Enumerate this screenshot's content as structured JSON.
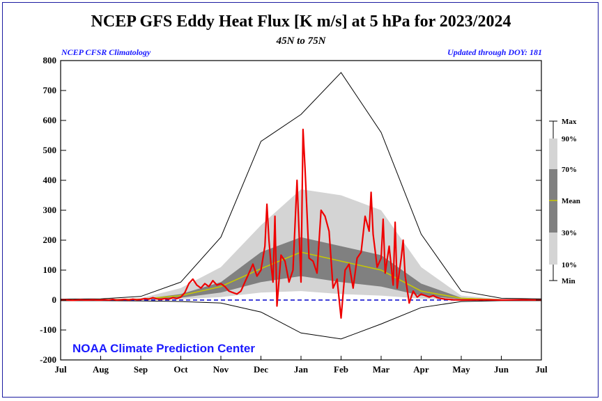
{
  "header": {
    "title": "NCEP GFS Eddy Heat Flux [K m/s] at 5 hPa for 2023/2024",
    "subtitle": "45N to 75N",
    "climatology_label": "NCEP CFSR Climatology",
    "updated_label": "Updated through DOY: 181"
  },
  "credit": "NOAA Climate Prediction Center",
  "legend": {
    "labels": [
      "Max",
      "90%",
      "70%",
      "Mean",
      "30%",
      "10%",
      "Min"
    ]
  },
  "colors": {
    "observed": "#ee0000",
    "mean": "#c8c800",
    "band_10_90": "#d4d4d4",
    "band_30_70": "#808080",
    "extremes": "#000000",
    "zero_line": "#0000cc",
    "text_blue": "#1a1aff"
  },
  "chart_data": {
    "type": "area",
    "x": [
      "Jul",
      "Aug",
      "Sep",
      "Oct",
      "Nov",
      "Dec",
      "Jan",
      "Feb",
      "Mar",
      "Apr",
      "May",
      "Jun",
      "Jul"
    ],
    "ylim": [
      -200,
      800
    ],
    "yticks": [
      -200,
      -100,
      0,
      100,
      200,
      300,
      400,
      500,
      600,
      700,
      800
    ],
    "xticks": [
      "Jul",
      "Aug",
      "Sep",
      "Oct",
      "Nov",
      "Dec",
      "Jan",
      "Feb",
      "Mar",
      "Apr",
      "May",
      "Jun",
      "Jul"
    ],
    "series": [
      {
        "name": "Max",
        "values": [
          3,
          4,
          12,
          60,
          210,
          530,
          620,
          760,
          560,
          220,
          30,
          6,
          4
        ]
      },
      {
        "name": "90%",
        "values": [
          1,
          2,
          6,
          40,
          110,
          250,
          370,
          350,
          300,
          110,
          15,
          3,
          2
        ]
      },
      {
        "name": "70%",
        "values": [
          1,
          1,
          3,
          20,
          60,
          160,
          210,
          180,
          150,
          55,
          8,
          2,
          1
        ]
      },
      {
        "name": "Mean",
        "values": [
          0,
          1,
          3,
          15,
          45,
          105,
          160,
          130,
          100,
          30,
          6,
          1,
          0
        ]
      },
      {
        "name": "30%",
        "values": [
          0,
          0,
          1,
          8,
          25,
          60,
          80,
          60,
          45,
          15,
          3,
          1,
          0
        ]
      },
      {
        "name": "10%",
        "values": [
          0,
          0,
          0,
          3,
          10,
          25,
          30,
          20,
          15,
          5,
          1,
          0,
          0
        ]
      },
      {
        "name": "Min",
        "values": [
          -2,
          -2,
          -3,
          -5,
          -10,
          -40,
          -110,
          -130,
          -80,
          -25,
          -5,
          -2,
          -2
        ]
      }
    ],
    "observed_values": [
      [
        0,
        0
      ],
      [
        0.1,
        1
      ],
      [
        0.2,
        0
      ],
      [
        0.3,
        -1
      ],
      [
        0.4,
        0
      ],
      [
        0.5,
        1
      ],
      [
        0.6,
        0
      ],
      [
        0.7,
        0
      ],
      [
        0.8,
        1
      ],
      [
        0.9,
        0
      ],
      [
        1,
        0
      ],
      [
        1.1,
        1
      ],
      [
        1.2,
        0
      ],
      [
        1.3,
        2
      ],
      [
        1.4,
        0
      ],
      [
        1.5,
        1
      ],
      [
        1.6,
        2
      ],
      [
        1.7,
        0
      ],
      [
        1.8,
        3
      ],
      [
        1.9,
        1
      ],
      [
        2,
        2
      ],
      [
        2.1,
        5
      ],
      [
        2.2,
        3
      ],
      [
        2.3,
        8
      ],
      [
        2.4,
        4
      ],
      [
        2.5,
        2
      ],
      [
        2.6,
        5
      ],
      [
        2.7,
        3
      ],
      [
        2.8,
        8
      ],
      [
        2.9,
        5
      ],
      [
        3,
        10
      ],
      [
        3.1,
        25
      ],
      [
        3.2,
        55
      ],
      [
        3.3,
        70
      ],
      [
        3.4,
        50
      ],
      [
        3.5,
        40
      ],
      [
        3.6,
        55
      ],
      [
        3.7,
        45
      ],
      [
        3.8,
        65
      ],
      [
        3.9,
        50
      ],
      [
        4,
        55
      ],
      [
        4.1,
        45
      ],
      [
        4.2,
        30
      ],
      [
        4.3,
        25
      ],
      [
        4.4,
        20
      ],
      [
        4.5,
        30
      ],
      [
        4.6,
        60
      ],
      [
        4.7,
        90
      ],
      [
        4.8,
        120
      ],
      [
        4.9,
        80
      ],
      [
        5,
        100
      ],
      [
        5.1,
        180
      ],
      [
        5.15,
        320
      ],
      [
        5.2,
        200
      ],
      [
        5.25,
        120
      ],
      [
        5.3,
        60
      ],
      [
        5.35,
        280
      ],
      [
        5.4,
        -20
      ],
      [
        5.5,
        150
      ],
      [
        5.6,
        130
      ],
      [
        5.7,
        60
      ],
      [
        5.8,
        100
      ],
      [
        5.9,
        400
      ],
      [
        6,
        60
      ],
      [
        6.05,
        570
      ],
      [
        6.1,
        440
      ],
      [
        6.2,
        140
      ],
      [
        6.3,
        130
      ],
      [
        6.4,
        90
      ],
      [
        6.5,
        300
      ],
      [
        6.6,
        280
      ],
      [
        6.7,
        230
      ],
      [
        6.8,
        40
      ],
      [
        6.9,
        70
      ],
      [
        7,
        -60
      ],
      [
        7.1,
        100
      ],
      [
        7.2,
        120
      ],
      [
        7.3,
        40
      ],
      [
        7.4,
        140
      ],
      [
        7.5,
        160
      ],
      [
        7.6,
        280
      ],
      [
        7.7,
        230
      ],
      [
        7.75,
        360
      ],
      [
        7.8,
        220
      ],
      [
        7.9,
        110
      ],
      [
        8,
        140
      ],
      [
        8.05,
        270
      ],
      [
        8.1,
        90
      ],
      [
        8.2,
        180
      ],
      [
        8.3,
        50
      ],
      [
        8.35,
        260
      ],
      [
        8.4,
        40
      ],
      [
        8.5,
        140
      ],
      [
        8.55,
        200
      ],
      [
        8.6,
        80
      ],
      [
        8.7,
        -10
      ],
      [
        8.8,
        30
      ],
      [
        8.9,
        10
      ],
      [
        9,
        20
      ],
      [
        9.1,
        15
      ],
      [
        9.2,
        10
      ],
      [
        9.3,
        15
      ],
      [
        9.4,
        8
      ],
      [
        9.5,
        5
      ],
      [
        9.6,
        3
      ],
      [
        9.7,
        2
      ],
      [
        9.8,
        1
      ],
      [
        10,
        0
      ],
      [
        10.5,
        1
      ],
      [
        11,
        0
      ],
      [
        11.5,
        1
      ],
      [
        12,
        0
      ]
    ]
  }
}
